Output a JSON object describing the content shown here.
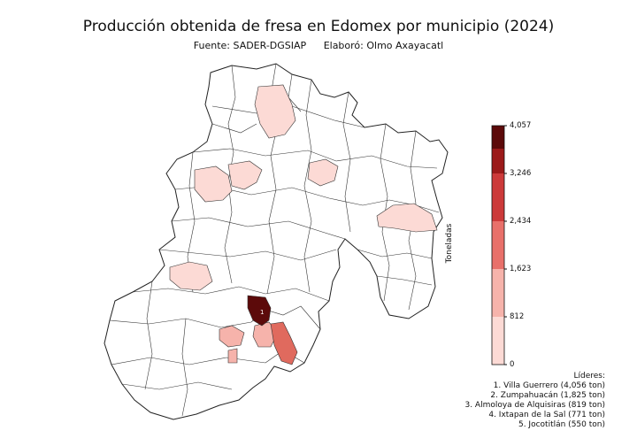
{
  "header": {
    "title": "Producción obtenida de fresa en Edomex por municipio (2024)",
    "source": "Fuente: SADER-DGSIAP",
    "author": "Elaboró: Olmo Axayacatl"
  },
  "colorbar": {
    "label": "Toneladas",
    "ticks": [
      "0",
      "812",
      "1,623",
      "2,434",
      "3,246",
      "4,057"
    ],
    "colors": [
      "#fcdad5",
      "#f6b3ab",
      "#e8706a",
      "#cc3a3a",
      "#9b1a1a",
      "#5c0a0a"
    ]
  },
  "leaders": {
    "heading": "Líderes:",
    "items": [
      "1. Villa Guerrero (4,056 ton)",
      "2. Zumpahuacán (1,825 ton)",
      "3. Almoloya de Alquisiras (819 ton)",
      "4. Ixtapan de la Sal (771 ton)",
      "5. Jocotitlán (550 ton)"
    ]
  },
  "map_labels": {
    "rank1": "1"
  }
}
